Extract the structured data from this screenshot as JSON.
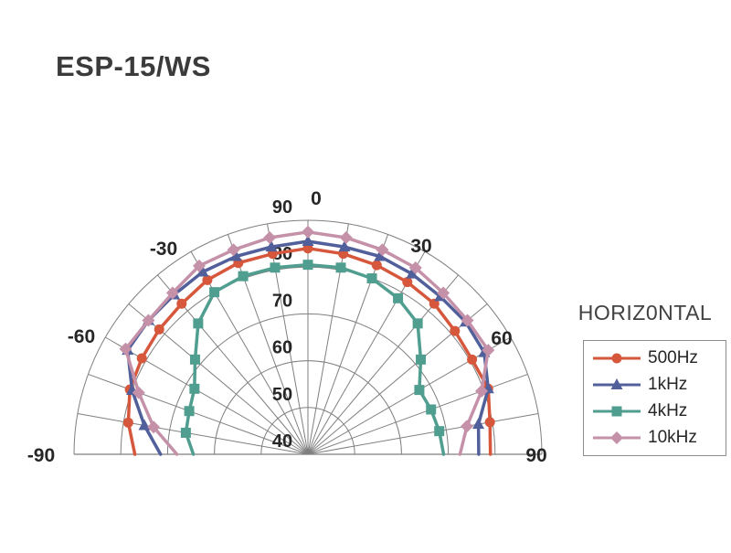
{
  "title": "ESP-15/WS",
  "panel_label": "HORIZ0NTAL",
  "chart_data": {
    "type": "line",
    "subtype": "polar-semicircle",
    "title": "ESP-15/WS",
    "legend_position": "right",
    "grid": {
      "on": true,
      "color": "#7f7f7f",
      "spoke_step_deg": 10,
      "ring_step": 10
    },
    "angle_unit": "degrees",
    "angles": [
      -90,
      -80,
      -70,
      -60,
      -50,
      -40,
      -30,
      -20,
      -10,
      0,
      10,
      20,
      30,
      40,
      50,
      60,
      70,
      80,
      90
    ],
    "angle_tick_labels": [
      "-90",
      "-60",
      "-30",
      "0",
      "30",
      "60",
      "90"
    ],
    "angle_tick_values": [
      -90,
      -60,
      -30,
      0,
      30,
      60,
      90
    ],
    "radial_axis": {
      "min": 40,
      "max": 90,
      "step": 10,
      "tick_labels": [
        "40",
        "50",
        "60",
        "70",
        "80",
        "90"
      ]
    },
    "series": [
      {
        "name": "500Hz",
        "color": "#D6573C",
        "marker": "circle",
        "values": [
          77,
          79,
          80.5,
          81,
          81.5,
          82,
          83,
          83.5,
          83.5,
          84,
          83.5,
          83,
          82.5,
          82,
          81,
          80.5,
          81,
          79.5,
          79
        ]
      },
      {
        "name": "1kHz",
        "color": "#51609B",
        "marker": "triangle",
        "values": [
          71.5,
          75.5,
          80,
          84.5,
          84.5,
          84.5,
          85,
          85,
          85,
          85.5,
          85,
          85,
          84.5,
          84,
          84,
          83.5,
          81,
          77,
          76.5
        ]
      },
      {
        "name": "4kHz",
        "color": "#509E8F",
        "marker": "square",
        "values": [
          64.5,
          66.5,
          67,
          68,
          71.5,
          76.5,
          80,
          80.5,
          80.5,
          80.5,
          80.5,
          80,
          78.5,
          76.5,
          71.5,
          67.5,
          68,
          68.5,
          69
        ]
      },
      {
        "name": "10kHz",
        "color": "#C591A9",
        "marker": "diamond",
        "values": [
          68,
          73.5,
          78.5,
          85,
          84.5,
          85,
          86.5,
          86.5,
          87,
          87.5,
          87,
          86.5,
          86,
          85,
          84.5,
          84.5,
          79.5,
          74.5,
          72.5
        ]
      }
    ]
  }
}
